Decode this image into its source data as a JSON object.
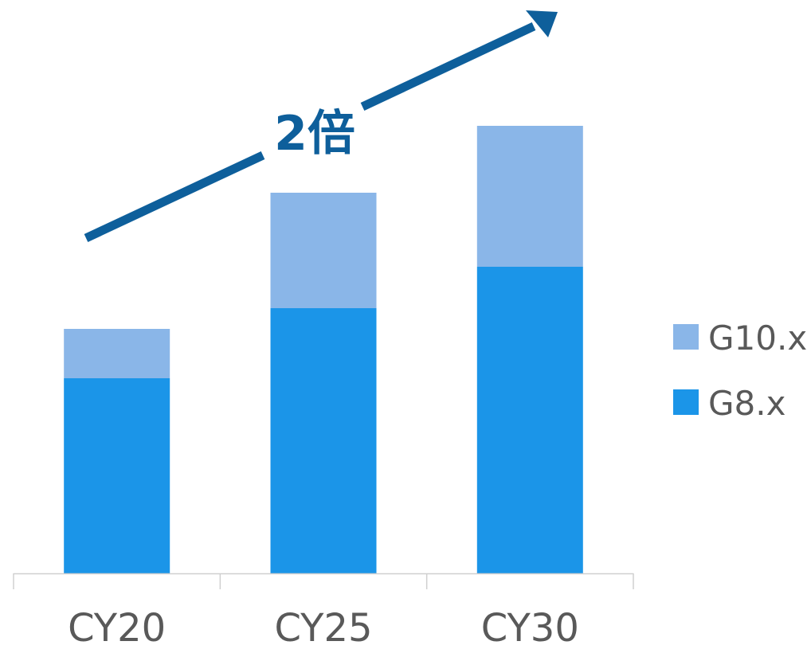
{
  "chart_data": {
    "type": "bar",
    "stacked": true,
    "categories": [
      "CY20",
      "CY25",
      "CY30"
    ],
    "series": [
      {
        "name": "G8.x",
        "values": [
          245,
          333,
          385
        ],
        "color": "#1b95e8"
      },
      {
        "name": "G10.x",
        "values": [
          62,
          145,
          177
        ],
        "color": "#8ab6e8"
      }
    ],
    "ylim": [
      0,
      720
    ],
    "grid": false,
    "legend_position": "right",
    "annotation": {
      "text": "2倍",
      "color": "#0e5f9b",
      "shape": "trend-arrow"
    }
  }
}
